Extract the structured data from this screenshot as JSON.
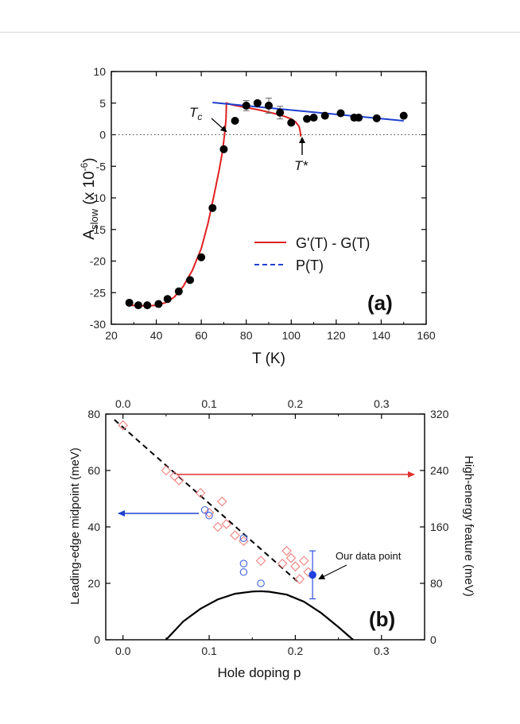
{
  "chart_data": [
    {
      "panel": "(a)",
      "type": "scatter",
      "xlabel": "T (K)",
      "ylabel_main": "A",
      "ylabel_sub": "slow",
      "ylabel_tail": " (x 10",
      "ylabel_sup": "-6",
      "ylabel_end": ")",
      "xlim": [
        20,
        160
      ],
      "ylim": [
        -30,
        10
      ],
      "xticks": [
        20,
        40,
        60,
        80,
        100,
        120,
        140,
        160
      ],
      "yticks": [
        -30,
        -25,
        -20,
        -15,
        -10,
        -5,
        0,
        5,
        10
      ],
      "points": {
        "x": [
          28,
          32,
          36,
          41,
          45,
          50,
          55,
          60,
          65,
          70,
          75,
          80,
          85,
          90,
          95,
          100,
          107,
          110,
          115,
          122,
          128,
          130,
          138,
          150
        ],
        "y": [
          -26.6,
          -27,
          -27,
          -26.8,
          -26,
          -24.8,
          -23,
          -19.4,
          -11.6,
          -2.3,
          2.2,
          4.6,
          5,
          4.6,
          3.5,
          1.9,
          2.5,
          2.7,
          3,
          3.4,
          2.7,
          2.7,
          2.6,
          3
        ]
      },
      "error_bars": [
        {
          "x": 80,
          "y": 4.6,
          "err": 0.8
        },
        {
          "x": 90,
          "y": 4.6,
          "err": 1.2
        },
        {
          "x": 95,
          "y": 3.5,
          "err": 1
        }
      ],
      "series": [
        {
          "name": "G'(T) - G(T)",
          "color": "#e02020",
          "style": "solid",
          "x": [
            28,
            32,
            36,
            40,
            44,
            48,
            52,
            56,
            60,
            63,
            66,
            68,
            69.5,
            70.5,
            71,
            71.2,
            74,
            80,
            86,
            92,
            97,
            100,
            102,
            103.5,
            104,
            104.2
          ],
          "y": [
            -27,
            -27.05,
            -27.1,
            -27,
            -26.6,
            -25.7,
            -24,
            -21.5,
            -18,
            -14,
            -9,
            -5.5,
            -2.5,
            0.5,
            2.5,
            5,
            4.7,
            4.3,
            3.9,
            3.4,
            2.9,
            2.5,
            2,
            1.3,
            0.5,
            -0.3
          ]
        },
        {
          "name": "P(T)",
          "color": "#2040d0",
          "style": "dashed",
          "x": [
            65,
            150
          ],
          "y": [
            5.1,
            2.2
          ]
        }
      ],
      "reference_line": {
        "y": 0,
        "style": "dotted"
      },
      "annotations": [
        {
          "text": "T",
          "sub": "c",
          "x": 70,
          "y": 0
        },
        {
          "text": "T*",
          "x": 104,
          "y": 0
        }
      ],
      "panel_label": "(a)",
      "legend_position": "right"
    },
    {
      "panel": "(b)",
      "type": "scatter",
      "xlabel": "Hole doping p",
      "ylabel_left": "Leading-edge midpoint (meV)",
      "ylabel_right": "High-energy feature (meV)",
      "xlim": [
        -0.02,
        0.35
      ],
      "ylim_left": [
        0,
        80
      ],
      "ylim_right": [
        0,
        320
      ],
      "xticks": [
        0.0,
        0.1,
        0.2,
        0.3
      ],
      "xtick_labels": [
        "0.0",
        "0.1",
        "0.2",
        "0.3"
      ],
      "yticks_left": [
        0,
        20,
        40,
        60,
        80
      ],
      "yticks_right": [
        0,
        80,
        160,
        240,
        320
      ],
      "diamonds_right_axis": {
        "color": "#f08080",
        "x": [
          0.0,
          0.05,
          0.06,
          0.065,
          0.09,
          0.1,
          0.11,
          0.115,
          0.12,
          0.13,
          0.14,
          0.16,
          0.185,
          0.19,
          0.195,
          0.2,
          0.205,
          0.21,
          0.215
        ],
        "y": [
          304,
          240,
          232,
          226,
          208,
          180,
          160,
          196,
          164,
          148,
          140,
          112,
          108,
          126,
          116,
          104,
          86,
          112,
          96
        ]
      },
      "circles_left_axis": {
        "color": "#4060e0",
        "x": [
          0.095,
          0.1,
          0.14,
          0.14,
          0.14,
          0.16
        ],
        "y": [
          46,
          44,
          36,
          27,
          24,
          20
        ]
      },
      "our_point": {
        "x": 0.22,
        "y": 23,
        "err": 8.5,
        "label": "Our data point"
      },
      "trend_line": {
        "x": [
          -0.01,
          0.205
        ],
        "y": [
          78,
          20
        ]
      },
      "dome": {
        "x": [
          0.05,
          0.07,
          0.09,
          0.11,
          0.13,
          0.15,
          0.16,
          0.17,
          0.19,
          0.21,
          0.23,
          0.25,
          0.267
        ],
        "y": [
          0,
          6.5,
          11,
          14.3,
          16.3,
          17.1,
          17.2,
          17,
          16,
          13.5,
          9.5,
          4.5,
          0
        ]
      },
      "arrows": [
        {
          "direction": "right",
          "color": "#e03030",
          "meaning": "diamonds read right axis"
        },
        {
          "direction": "left",
          "color": "#2040d0",
          "meaning": "circles read left axis"
        }
      ],
      "panel_label": "(b)"
    }
  ]
}
